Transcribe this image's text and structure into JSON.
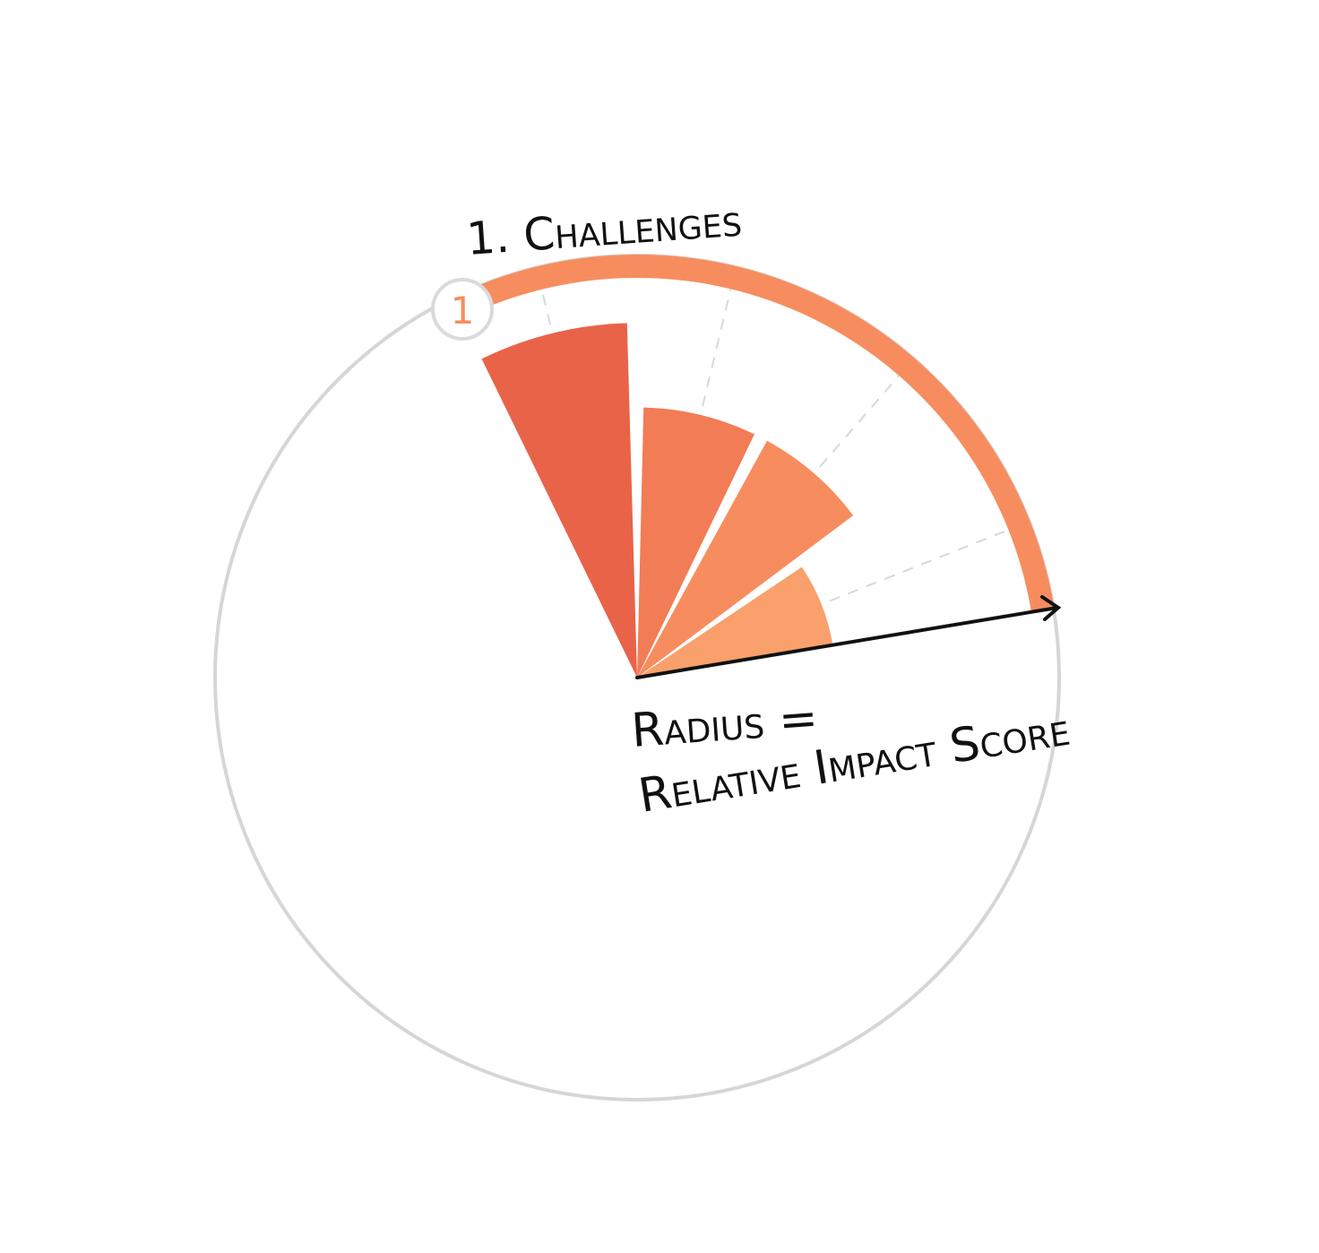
{
  "section": {
    "number": "1",
    "title": "1. Challenges"
  },
  "axis": {
    "line1": "Radius =",
    "line2": "Relative Impact Score"
  },
  "chart_data": {
    "type": "radial-bar",
    "title": "1. Challenges",
    "radius_meaning": "Relative Impact Score",
    "max_score": 1.0,
    "wedges": [
      {
        "value": 0.84,
        "color": "#E96349"
      },
      {
        "value": 0.64,
        "color": "#F27C55"
      },
      {
        "value": 0.64,
        "color": "#F78D5E"
      },
      {
        "value": 0.47,
        "color": "#F9A06C"
      }
    ],
    "gridlines": "dashed"
  },
  "colors": {
    "ring": "#D6D6D6",
    "section_arc": "#F78D5E",
    "badge_ring": "#DADADA",
    "badge_text": "#F78D5E",
    "arrow": "#111111"
  }
}
